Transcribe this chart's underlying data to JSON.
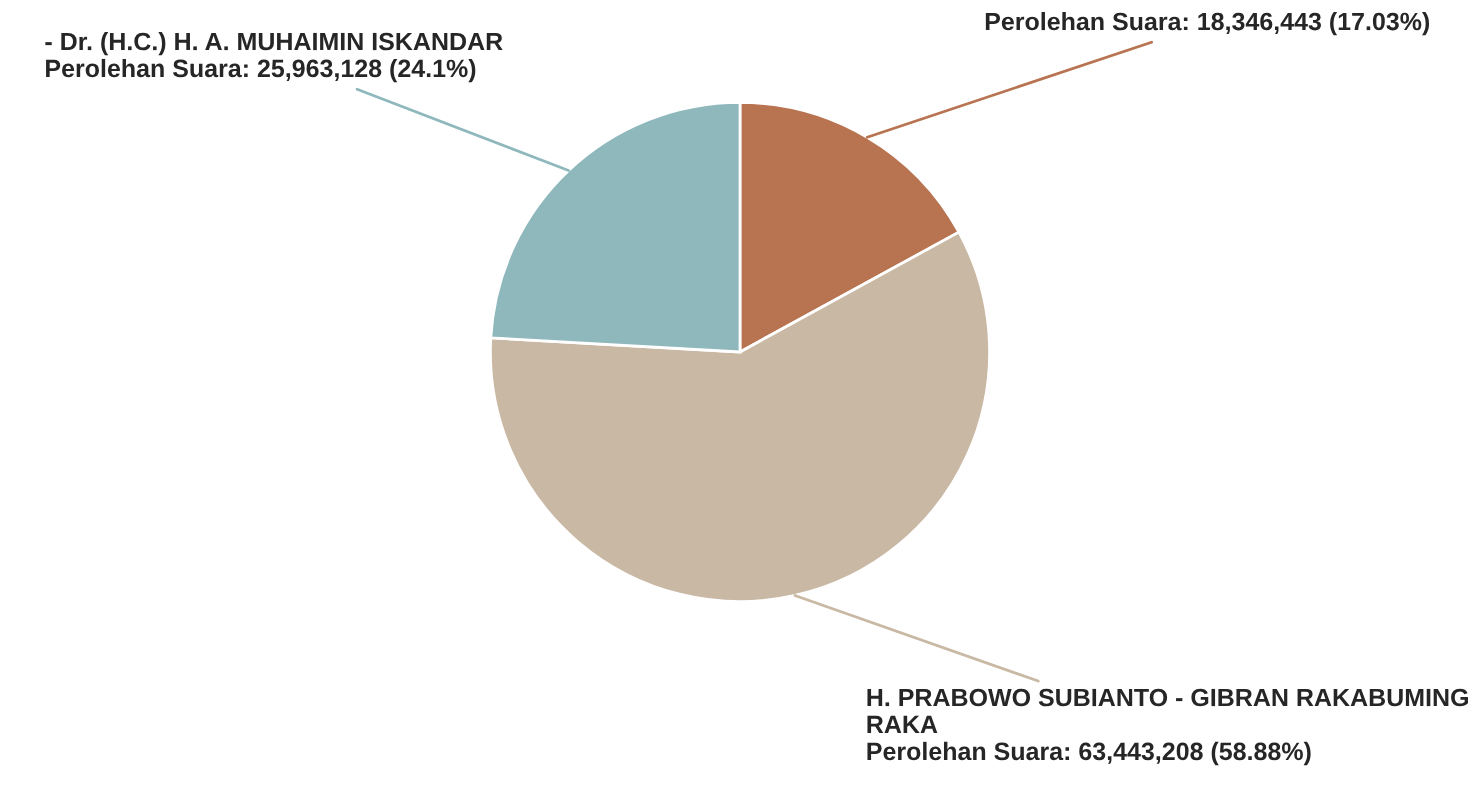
{
  "chart_data": {
    "type": "pie",
    "categories": [
      null,
      "H. PRABOWO SUBIANTO - GIBRAN RAKABUMING RAKA",
      "- Dr. (H.C.) H. A. MUHAIMIN ISKANDAR"
    ],
    "values": [
      18346443,
      63443208,
      25963128
    ],
    "colors": [
      "#b87350",
      "#c9b8a3",
      "#8fb8bd"
    ],
    "value_labels": [
      "Perolehan Suara: 18,346,443 (17.03%)",
      "Perolehan Suara: 63,443,208 (58.88%)",
      "Perolehan Suara: 25,963,128 (24.1%)"
    ]
  }
}
